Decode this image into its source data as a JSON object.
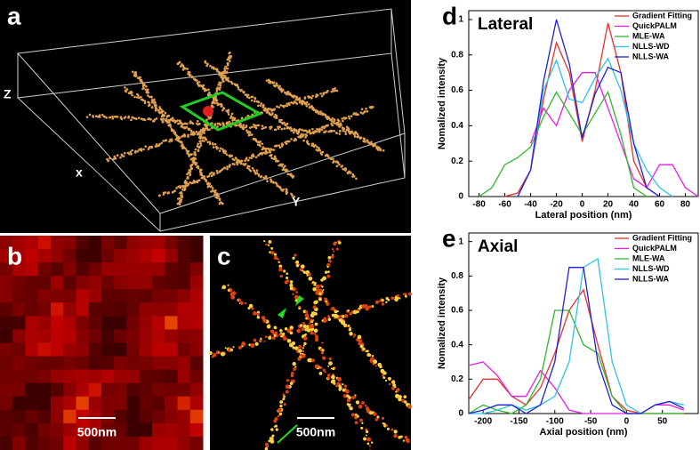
{
  "labels": {
    "panel_a": "a",
    "panel_b": "b",
    "panel_c": "c",
    "axis_z": "Z",
    "axis_x": "x",
    "axis_y": "Y",
    "scale_b": "500nm",
    "scale_c": "500nm"
  },
  "chart_data": [
    {
      "type": "line",
      "panel_label": "d",
      "title": "Lateral",
      "x_label": "Lateral position (nm)",
      "y_label": "Nomalized intensity",
      "x": [
        -80,
        -70,
        -60,
        -50,
        -40,
        -30,
        -20,
        -10,
        0,
        10,
        20,
        30,
        40,
        50,
        60,
        70,
        80,
        90
      ],
      "series": [
        {
          "name": "Gradient Fitting",
          "color": "#e8312a",
          "values": [
            null,
            null,
            0,
            0.02,
            0.15,
            0.55,
            0.87,
            0.7,
            0.31,
            0.6,
            0.98,
            0.7,
            0.2,
            0.05,
            0,
            null,
            null,
            null
          ]
        },
        {
          "name": "QuickPALM",
          "color": "#e81ee8",
          "values": [
            null,
            null,
            null,
            null,
            0.3,
            0.5,
            0.4,
            0.6,
            0.7,
            0.7,
            0.5,
            0.3,
            0.1,
            0.05,
            0.18,
            0.18,
            0.05,
            0
          ]
        },
        {
          "name": "MLE-WA",
          "color": "#2eb82e",
          "values": [
            0,
            0.05,
            0.18,
            0.22,
            0.28,
            0.45,
            0.59,
            0.47,
            0.35,
            0.47,
            0.59,
            0.35,
            0.05,
            0,
            null,
            null,
            null,
            null
          ]
        },
        {
          "name": "NLLS-WD",
          "color": "#2ec4e8",
          "values": [
            null,
            null,
            null,
            0,
            0.15,
            0.6,
            0.77,
            0.55,
            0.53,
            0.67,
            0.78,
            0.6,
            0.3,
            0.15,
            0.05,
            0,
            null,
            null
          ]
        },
        {
          "name": "NLLS-WA",
          "color": "#1f1fd6",
          "values": [
            null,
            null,
            null,
            0,
            0.15,
            0.65,
            1.0,
            0.75,
            0.33,
            0.58,
            0.73,
            0.7,
            0.3,
            0.05,
            0,
            null,
            null,
            null
          ]
        }
      ],
      "xlim": [
        -88,
        90
      ],
      "ylim": [
        0,
        1.05
      ],
      "xticks": [
        -80,
        -60,
        -40,
        -20,
        0,
        20,
        40,
        60,
        80
      ],
      "yticks": [
        0,
        0.2,
        0.4,
        0.6,
        0.8,
        1
      ]
    },
    {
      "type": "line",
      "panel_label": "e",
      "title": "Axial",
      "x_label": "Axial position (nm)",
      "y_label": "Nomalized intensity",
      "x": [
        -220,
        -200,
        -180,
        -160,
        -140,
        -120,
        -100,
        -80,
        -60,
        -40,
        -20,
        0,
        20,
        40,
        60,
        80
      ],
      "series": [
        {
          "name": "Gradient Fitting",
          "color": "#e8312a",
          "values": [
            0.08,
            0.2,
            0.2,
            0.1,
            0.05,
            0.15,
            0.35,
            0.6,
            0.72,
            0.4,
            0.1,
            0.02,
            0,
            0,
            0,
            0
          ]
        },
        {
          "name": "QuickPALM",
          "color": "#e81ee8",
          "values": [
            0.28,
            0.3,
            0.22,
            0.1,
            0.1,
            0.25,
            0.15,
            0.02,
            0,
            0,
            0,
            0,
            0,
            0.05,
            0.05,
            0.02
          ]
        },
        {
          "name": "MLE-WA",
          "color": "#2eb82e",
          "values": [
            0,
            0.05,
            0.02,
            0,
            0.05,
            0.2,
            0.6,
            0.6,
            0.4,
            0.35,
            0.1,
            0,
            0,
            0,
            0,
            0
          ]
        },
        {
          "name": "NLLS-WD",
          "color": "#2ec4e8",
          "values": [
            0,
            0,
            0.02,
            0.05,
            0.02,
            0.05,
            0.1,
            0.3,
            0.85,
            0.9,
            0.3,
            0.05,
            0,
            0.05,
            0.07,
            0.05
          ]
        },
        {
          "name": "NLLS-WA",
          "color": "#1f1fd6",
          "values": [
            0,
            0.02,
            0.05,
            0.05,
            0,
            0.05,
            0.3,
            0.85,
            0.85,
            0.3,
            0.05,
            0,
            0,
            0.05,
            0.07,
            0.03
          ]
        }
      ],
      "xlim": [
        -220,
        100
      ],
      "ylim": [
        0,
        1.05
      ],
      "xticks": [
        -200,
        -150,
        -100,
        -50,
        0,
        50
      ],
      "yticks": [
        0,
        0.2,
        0.4,
        0.6,
        0.8,
        1
      ]
    }
  ]
}
